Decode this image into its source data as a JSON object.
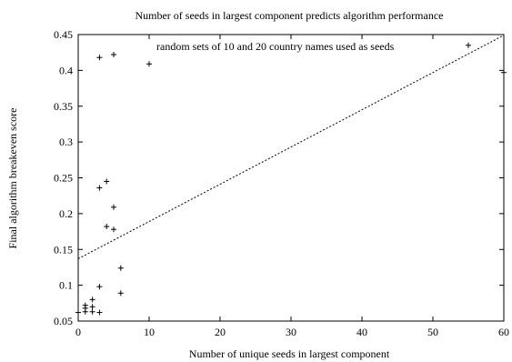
{
  "chart_data": {
    "type": "scatter",
    "title": "Number of seeds in largest component predicts algorithm performance",
    "xlabel": "Number of unique seeds in largest component",
    "ylabel": "Final algorithm breakeven score",
    "xlim": [
      0,
      60
    ],
    "ylim": [
      0.05,
      0.45
    ],
    "xticks": [
      0,
      10,
      20,
      30,
      40,
      50,
      60
    ],
    "yticks": [
      0.05,
      0.1,
      0.15,
      0.2,
      0.25,
      0.3,
      0.35,
      0.4,
      0.45
    ],
    "grid": false,
    "legend": {
      "position": "top-center",
      "entries": [
        "random sets of 10 and 20 country names used as seeds"
      ]
    },
    "series": [
      {
        "name": "random sets of 10 and 20 country names used as seeds",
        "marker": "+",
        "points": [
          {
            "x": 0,
            "y": 0.062
          },
          {
            "x": 1,
            "y": 0.063
          },
          {
            "x": 1,
            "y": 0.068
          },
          {
            "x": 1,
            "y": 0.072
          },
          {
            "x": 2,
            "y": 0.063
          },
          {
            "x": 2,
            "y": 0.07
          },
          {
            "x": 2,
            "y": 0.08
          },
          {
            "x": 3,
            "y": 0.062
          },
          {
            "x": 3,
            "y": 0.098
          },
          {
            "x": 3,
            "y": 0.236
          },
          {
            "x": 3,
            "y": 0.418
          },
          {
            "x": 4,
            "y": 0.182
          },
          {
            "x": 4,
            "y": 0.245
          },
          {
            "x": 5,
            "y": 0.178
          },
          {
            "x": 5,
            "y": 0.209
          },
          {
            "x": 5,
            "y": 0.422
          },
          {
            "x": 6,
            "y": 0.089
          },
          {
            "x": 6,
            "y": 0.124
          },
          {
            "x": 10,
            "y": 0.409
          },
          {
            "x": 55,
            "y": 0.435
          },
          {
            "x": 60,
            "y": 0.397
          }
        ]
      }
    ],
    "fit_line": {
      "style": "dashed",
      "from": {
        "x": 0,
        "y": 0.137
      },
      "to": {
        "x": 60,
        "y": 0.449
      }
    }
  }
}
